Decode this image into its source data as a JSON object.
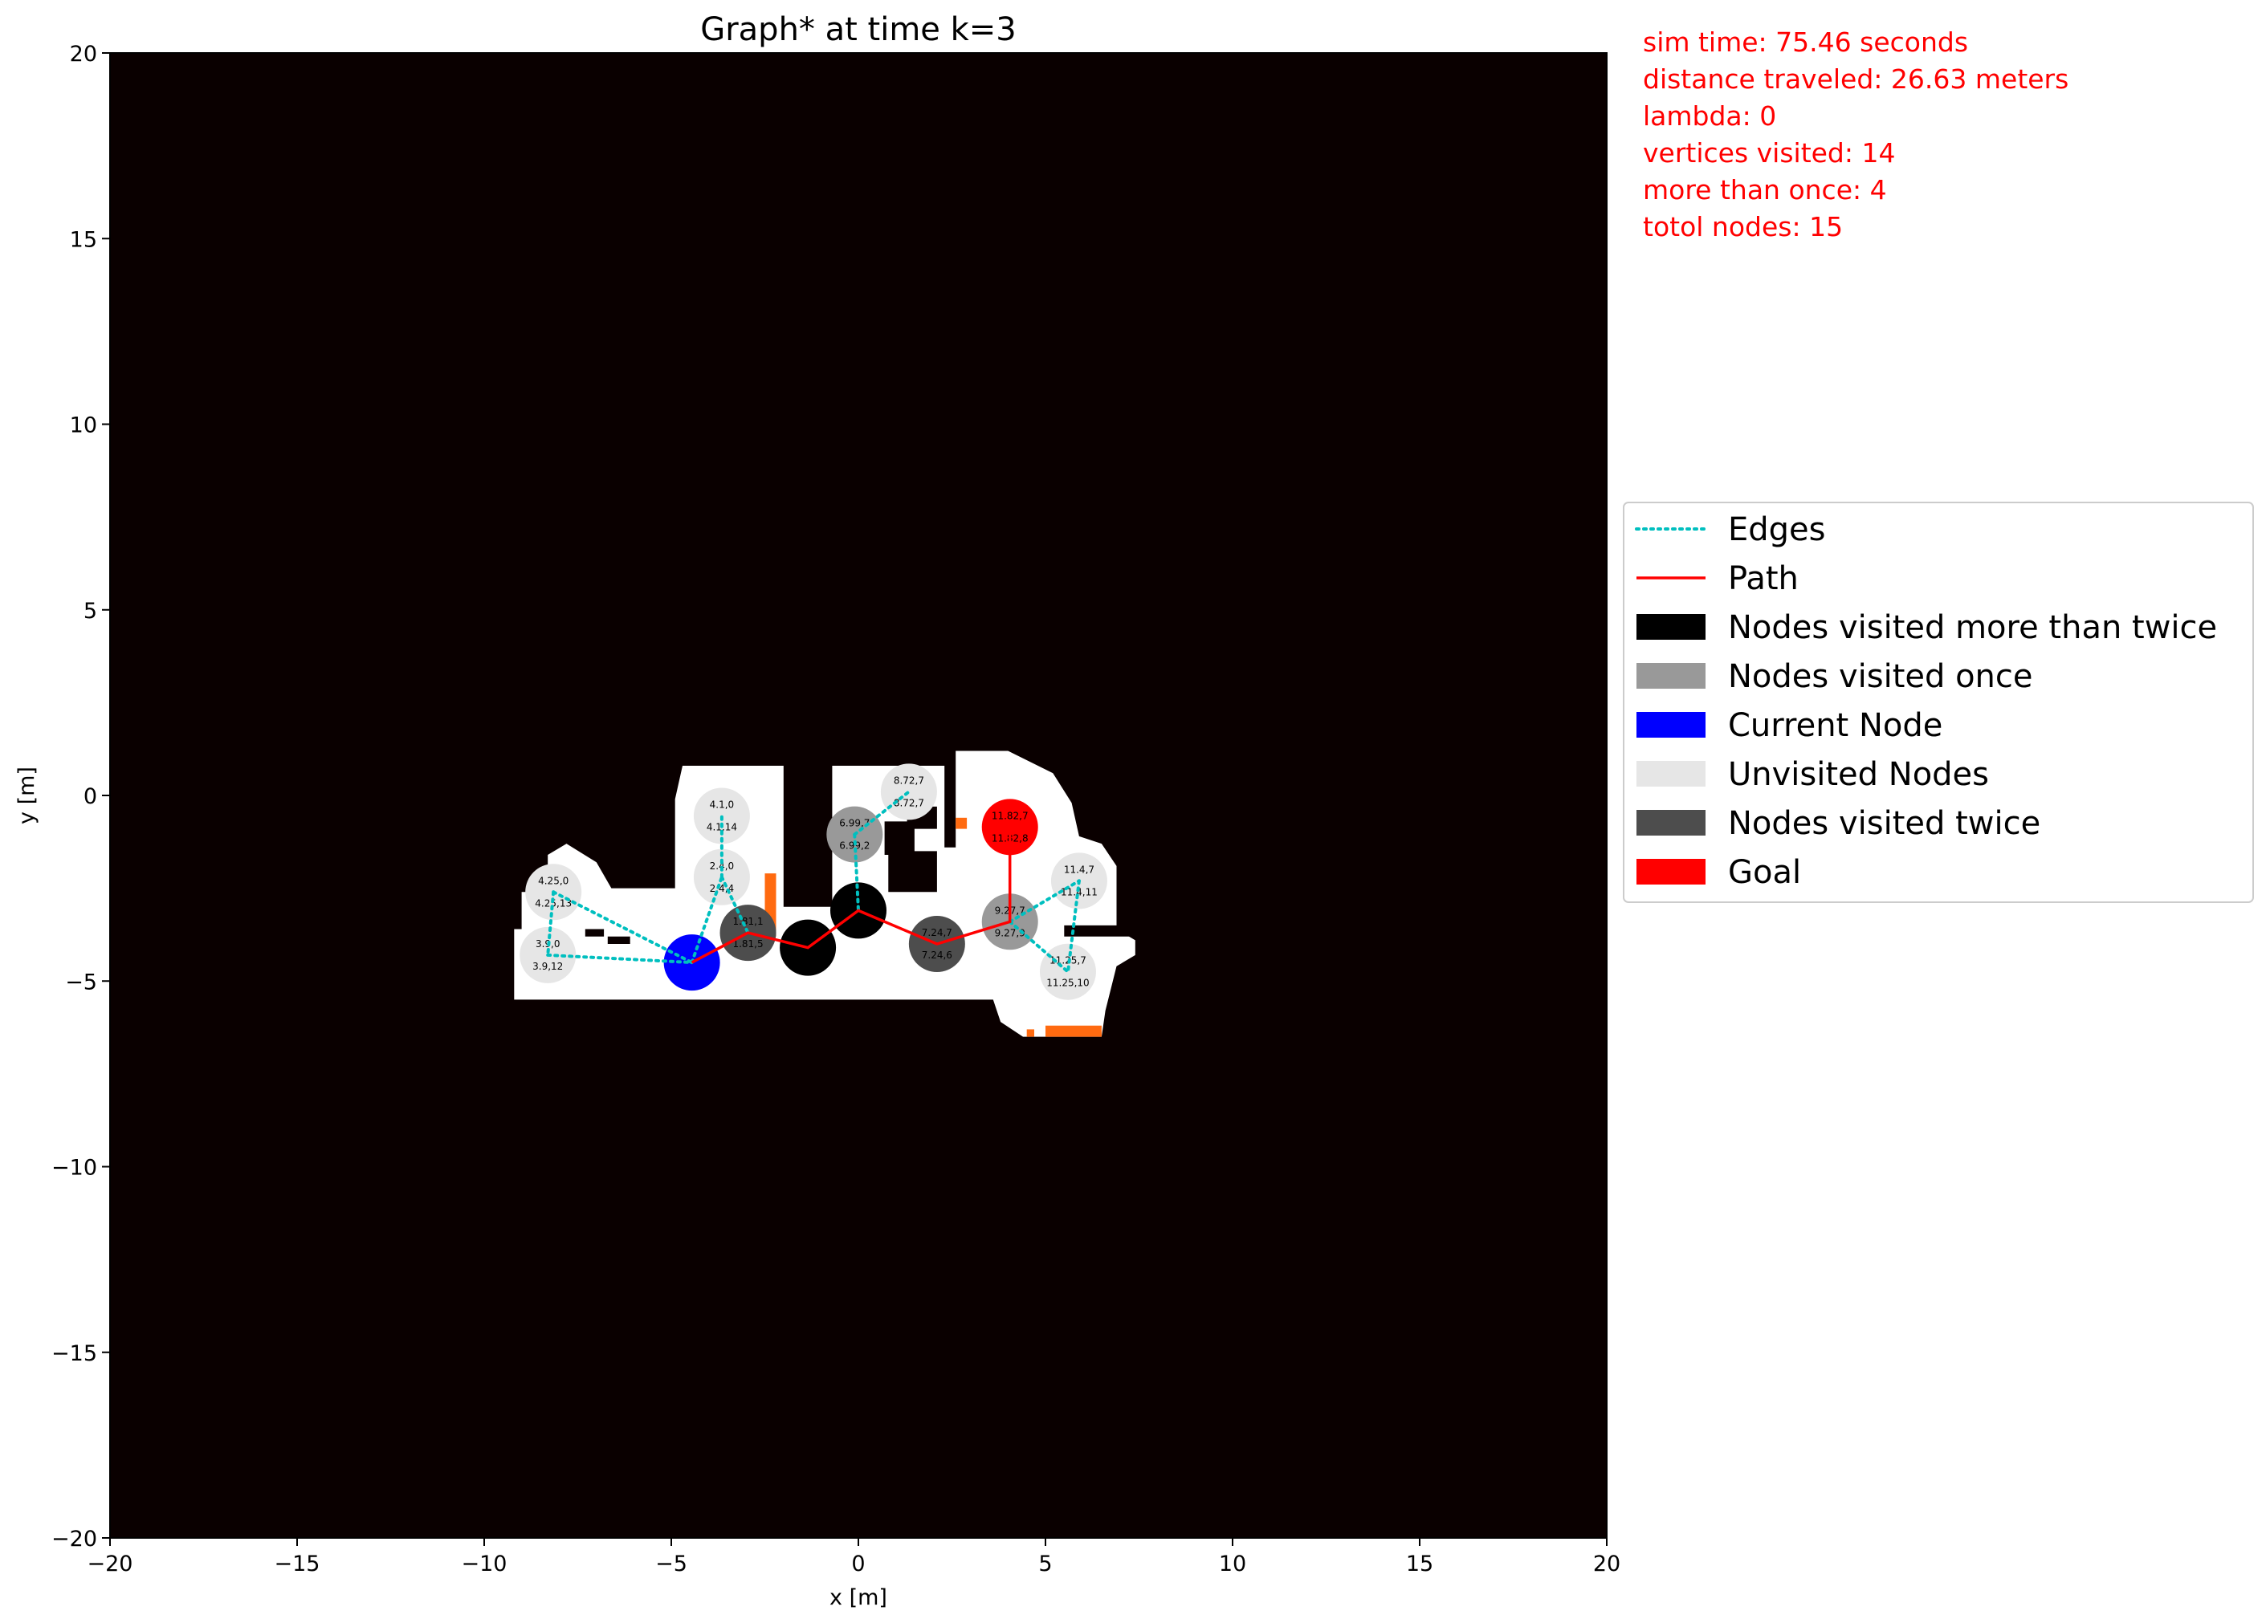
{
  "stats": [
    "sim time: 75.46 seconds",
    "distance traveled: 26.63 meters",
    "lambda: 0",
    "vertices visited: 14",
    "more than once: 4",
    "totol nodes: 15"
  ],
  "chart_data": {
    "type": "scatter",
    "title": "Graph* at time k=3",
    "xlabel": "x [m]",
    "ylabel": "y [m]",
    "xlim": [
      -20,
      20
    ],
    "ylim": [
      -20,
      20
    ],
    "xticks": [
      -20,
      -15,
      -10,
      -5,
      0,
      5,
      10,
      15,
      20
    ],
    "yticks": [
      -20,
      -15,
      -10,
      -5,
      0,
      5,
      10,
      15,
      20
    ],
    "xtick_labels": [
      "−20",
      "−15",
      "−10",
      "−5",
      "0",
      "5",
      "10",
      "15",
      "20"
    ],
    "ytick_labels": [
      "−20",
      "−15",
      "−10",
      "−5",
      "0",
      "5",
      "10",
      "15",
      "20"
    ],
    "grid": false,
    "background_color": "#0a0000",
    "free_space_color": "#ffffff",
    "obstacle_color": "#ff6a10",
    "free_space": [
      [
        [
          -9.2,
          -5.5
        ],
        [
          -9.2,
          -3.6
        ],
        [
          -9.0,
          -3.6
        ],
        [
          -9.0,
          -2.6
        ],
        [
          -8.3,
          -2.6
        ],
        [
          -8.3,
          -1.6
        ],
        [
          -7.8,
          -1.3
        ],
        [
          -7.0,
          -1.8
        ],
        [
          -6.6,
          -2.5
        ],
        [
          -4.9,
          -2.5
        ],
        [
          -4.9,
          -0.1
        ],
        [
          -4.7,
          0.8
        ],
        [
          -2.0,
          0.8
        ],
        [
          -2.0,
          -3.0
        ],
        [
          -0.7,
          -3.0
        ],
        [
          -0.7,
          0.8
        ],
        [
          2.3,
          0.8
        ],
        [
          2.3,
          -1.4
        ],
        [
          2.6,
          -1.4
        ],
        [
          2.6,
          1.2
        ],
        [
          4.0,
          1.2
        ],
        [
          5.2,
          0.6
        ],
        [
          5.7,
          -0.2
        ],
        [
          5.9,
          -1.1
        ],
        [
          6.5,
          -1.3
        ],
        [
          6.9,
          -1.9
        ],
        [
          6.9,
          -3.6
        ],
        [
          7.4,
          -3.9
        ],
        [
          7.4,
          -4.3
        ],
        [
          6.9,
          -4.6
        ],
        [
          6.6,
          -5.8
        ],
        [
          6.5,
          -6.5
        ],
        [
          4.4,
          -6.5
        ],
        [
          3.8,
          -6.1
        ],
        [
          3.6,
          -5.5
        ],
        [
          -9.2,
          -5.5
        ]
      ]
    ],
    "obstacles": [
      [
        [
          -2.5,
          -2.1
        ],
        [
          -2.2,
          -2.1
        ],
        [
          -2.2,
          -3.8
        ],
        [
          -2.5,
          -3.8
        ]
      ],
      [
        [
          2.6,
          -0.6
        ],
        [
          2.9,
          -0.6
        ],
        [
          2.9,
          -0.9
        ],
        [
          2.6,
          -0.9
        ]
      ],
      [
        [
          4.5,
          -6.3
        ],
        [
          4.7,
          -6.3
        ],
        [
          4.7,
          -6.5
        ],
        [
          4.5,
          -6.5
        ]
      ],
      [
        [
          5.0,
          -6.2
        ],
        [
          6.5,
          -6.2
        ],
        [
          6.5,
          -6.5
        ],
        [
          5.0,
          -6.5
        ]
      ]
    ],
    "interior_walls": [
      [
        [
          -7.3,
          -3.6
        ],
        [
          -6.8,
          -3.6
        ],
        [
          -6.8,
          -3.8
        ],
        [
          -7.3,
          -3.8
        ]
      ],
      [
        [
          -6.7,
          -3.8
        ],
        [
          -6.1,
          -3.8
        ],
        [
          -6.1,
          -4.0
        ],
        [
          -6.7,
          -4.0
        ]
      ],
      [
        [
          0.7,
          -0.7
        ],
        [
          1.5,
          -0.7
        ],
        [
          1.5,
          -1.6
        ],
        [
          0.7,
          -1.6
        ]
      ],
      [
        [
          0.8,
          -1.5
        ],
        [
          2.1,
          -1.5
        ],
        [
          2.1,
          -2.6
        ],
        [
          0.8,
          -2.6
        ]
      ],
      [
        [
          1.3,
          -0.3
        ],
        [
          2.1,
          -0.3
        ],
        [
          2.1,
          -0.9
        ],
        [
          1.3,
          -0.9
        ]
      ],
      [
        [
          5.5,
          -3.5
        ],
        [
          7.4,
          -3.5
        ],
        [
          7.4,
          -3.8
        ],
        [
          5.5,
          -3.8
        ]
      ]
    ],
    "edges": [
      [
        [
          -8.15,
          -2.6
        ],
        [
          -8.3,
          -4.3
        ]
      ],
      [
        [
          -8.3,
          -4.3
        ],
        [
          -4.45,
          -4.5
        ]
      ],
      [
        [
          -8.15,
          -2.6
        ],
        [
          -4.45,
          -4.5
        ]
      ],
      [
        [
          -4.45,
          -4.5
        ],
        [
          -3.65,
          -2.2
        ]
      ],
      [
        [
          -3.65,
          -2.2
        ],
        [
          -3.65,
          -0.55
        ]
      ],
      [
        [
          -3.65,
          -2.2
        ],
        [
          -2.95,
          -3.7
        ]
      ],
      [
        [
          -0.1,
          -1.05
        ],
        [
          1.35,
          0.1
        ]
      ],
      [
        [
          -0.1,
          -1.05
        ],
        [
          0.0,
          -3.1
        ]
      ],
      [
        [
          4.05,
          -3.4
        ],
        [
          5.9,
          -2.3
        ]
      ],
      [
        [
          5.9,
          -2.3
        ],
        [
          5.6,
          -4.75
        ]
      ],
      [
        [
          4.05,
          -3.4
        ],
        [
          5.6,
          -4.75
        ]
      ]
    ],
    "path": [
      [
        -4.45,
        -4.5
      ],
      [
        -2.95,
        -3.7
      ],
      [
        -1.35,
        -4.1
      ],
      [
        0.0,
        -3.1
      ],
      [
        2.1,
        -4.0
      ],
      [
        4.05,
        -3.4
      ],
      [
        4.05,
        -0.85
      ]
    ],
    "nodes": [
      {
        "x": -8.15,
        "y": -2.6,
        "category": "unvisited",
        "labels": [
          "4.25,0",
          "4.25,13"
        ]
      },
      {
        "x": -8.3,
        "y": -4.3,
        "category": "unvisited",
        "labels": [
          "3.9,0",
          "3.9,12"
        ]
      },
      {
        "x": -3.65,
        "y": -0.55,
        "category": "unvisited",
        "labels": [
          "4.1,0",
          "4.1,14"
        ]
      },
      {
        "x": -3.65,
        "y": -2.2,
        "category": "unvisited",
        "labels": [
          "2.4,0",
          "2.4,4"
        ]
      },
      {
        "x": 1.35,
        "y": 0.1,
        "category": "unvisited",
        "labels": [
          "8.72,7",
          "8.72,7"
        ]
      },
      {
        "x": 5.9,
        "y": -2.3,
        "category": "unvisited",
        "labels": [
          "11.4,7",
          "11.4,11"
        ]
      },
      {
        "x": 5.6,
        "y": -4.75,
        "category": "unvisited",
        "labels": [
          "11.25,7",
          "11.25,10"
        ]
      },
      {
        "x": -0.1,
        "y": -1.05,
        "category": "once",
        "labels": [
          "6.99,7",
          "6.99,2"
        ]
      },
      {
        "x": 4.05,
        "y": -3.4,
        "category": "once",
        "labels": [
          "9.27,7",
          "9.27,9"
        ]
      },
      {
        "x": -2.95,
        "y": -3.7,
        "category": "twice",
        "labels": [
          "1.81,1",
          "1.81,5"
        ]
      },
      {
        "x": 2.1,
        "y": -4.0,
        "category": "twice",
        "labels": [
          "7.24,7",
          "7.24,6"
        ]
      },
      {
        "x": -1.35,
        "y": -4.1,
        "category": "more_than_twice",
        "labels": []
      },
      {
        "x": 0.0,
        "y": -3.1,
        "category": "more_than_twice",
        "labels": []
      },
      {
        "x": -4.45,
        "y": -4.5,
        "category": "current",
        "labels": []
      },
      {
        "x": 4.05,
        "y": -0.85,
        "category": "goal",
        "labels": [
          "11.82,7",
          "11.82,8"
        ]
      }
    ],
    "node_radius": 0.75,
    "colors": {
      "edges": "#00bfbf",
      "path": "#ff0000",
      "more_than_twice": "#000000",
      "once": "#999999",
      "current": "#0000ff",
      "unvisited": "#e6e6e6",
      "twice": "#4d4d4d",
      "goal": "#ff0000"
    },
    "legend": {
      "placement": "center-right",
      "entries": [
        {
          "label": "Edges",
          "kind": "dotted-line",
          "color": "#00bfbf"
        },
        {
          "label": "Path",
          "kind": "line",
          "color": "#ff0000"
        },
        {
          "label": "Nodes visited more than twice",
          "kind": "patch",
          "color": "#000000"
        },
        {
          "label": "Nodes visited once",
          "kind": "patch",
          "color": "#999999"
        },
        {
          "label": "Current Node",
          "kind": "patch",
          "color": "#0000ff"
        },
        {
          "label": "Unvisited Nodes",
          "kind": "patch",
          "color": "#e6e6e6"
        },
        {
          "label": "Nodes visited twice",
          "kind": "patch",
          "color": "#4d4d4d"
        },
        {
          "label": "Goal",
          "kind": "patch",
          "color": "#ff0000"
        }
      ]
    }
  }
}
